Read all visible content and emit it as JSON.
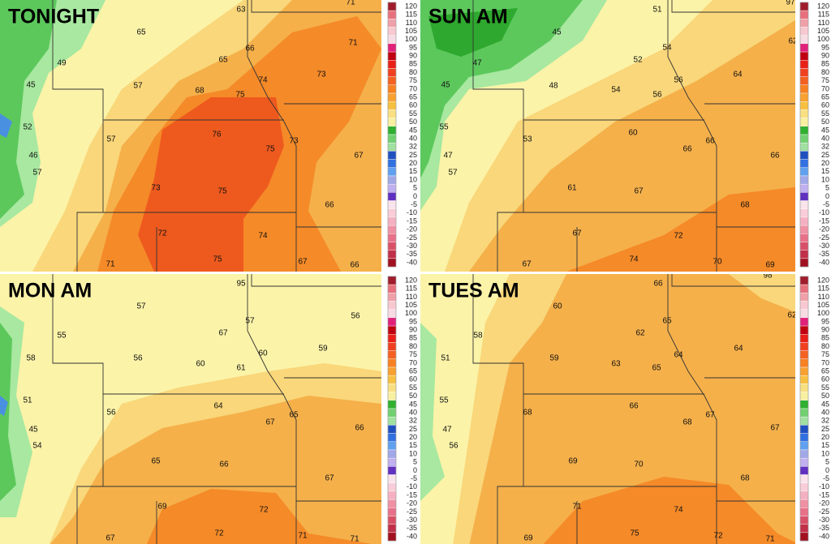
{
  "panels": [
    {
      "title": "TONIGHT",
      "labels": [
        63,
        71,
        65,
        49,
        66,
        71,
        65,
        45,
        57,
        74,
        73,
        68,
        75,
        52,
        57,
        76,
        75,
        73,
        67,
        46,
        57,
        73,
        75,
        66,
        72,
        74,
        71,
        75,
        67,
        66
      ]
    },
    {
      "title": "SUN AM",
      "labels": [
        97,
        51,
        45,
        47,
        52,
        54,
        62,
        45,
        48,
        54,
        56,
        56,
        64,
        55,
        53,
        60,
        66,
        66,
        66,
        47,
        57,
        61,
        67,
        68,
        67,
        72,
        67,
        74,
        70,
        69
      ]
    },
    {
      "title": "MON AM",
      "labels": [
        95,
        57,
        56,
        55,
        67,
        57,
        59,
        56,
        60,
        61,
        60,
        58,
        51,
        56,
        64,
        67,
        65,
        66,
        45,
        54,
        65,
        66,
        67,
        69,
        72,
        67,
        72,
        71,
        71
      ]
    },
    {
      "title": "TUES AM",
      "labels": [
        98,
        66,
        60,
        62,
        58,
        62,
        65,
        64,
        51,
        59,
        63,
        64,
        65,
        55,
        68,
        66,
        68,
        67,
        67,
        47,
        56,
        69,
        70,
        68,
        71,
        74,
        69,
        75,
        72,
        71
      ]
    }
  ],
  "legend": {
    "labels": [
      120,
      115,
      110,
      105,
      100,
      95,
      90,
      85,
      80,
      75,
      70,
      65,
      60,
      55,
      50,
      45,
      40,
      32,
      25,
      20,
      15,
      10,
      5,
      0,
      -5,
      -10,
      -15,
      -20,
      -25,
      -30,
      -35,
      -40
    ],
    "colors": [
      "#a01c2c",
      "#e8707c",
      "#f0a0a8",
      "#f8c8d0",
      "#f8dce4",
      "#e0207a",
      "#c00010",
      "#e82018",
      "#f04020",
      "#f46020",
      "#f88020",
      "#f8a030",
      "#f8c040",
      "#f8e080",
      "#f8f0a0",
      "#30b030",
      "#70d070",
      "#a0e0a0",
      "#2050c0",
      "#3070e0",
      "#60a0f0",
      "#a0a8e8",
      "#c0b0f0",
      "#6030c0",
      "#fae4ec",
      "#f8ccd8",
      "#f4b0c0",
      "#f090a4",
      "#e87088",
      "#d85068",
      "#c03048",
      "#a01020"
    ]
  }
}
